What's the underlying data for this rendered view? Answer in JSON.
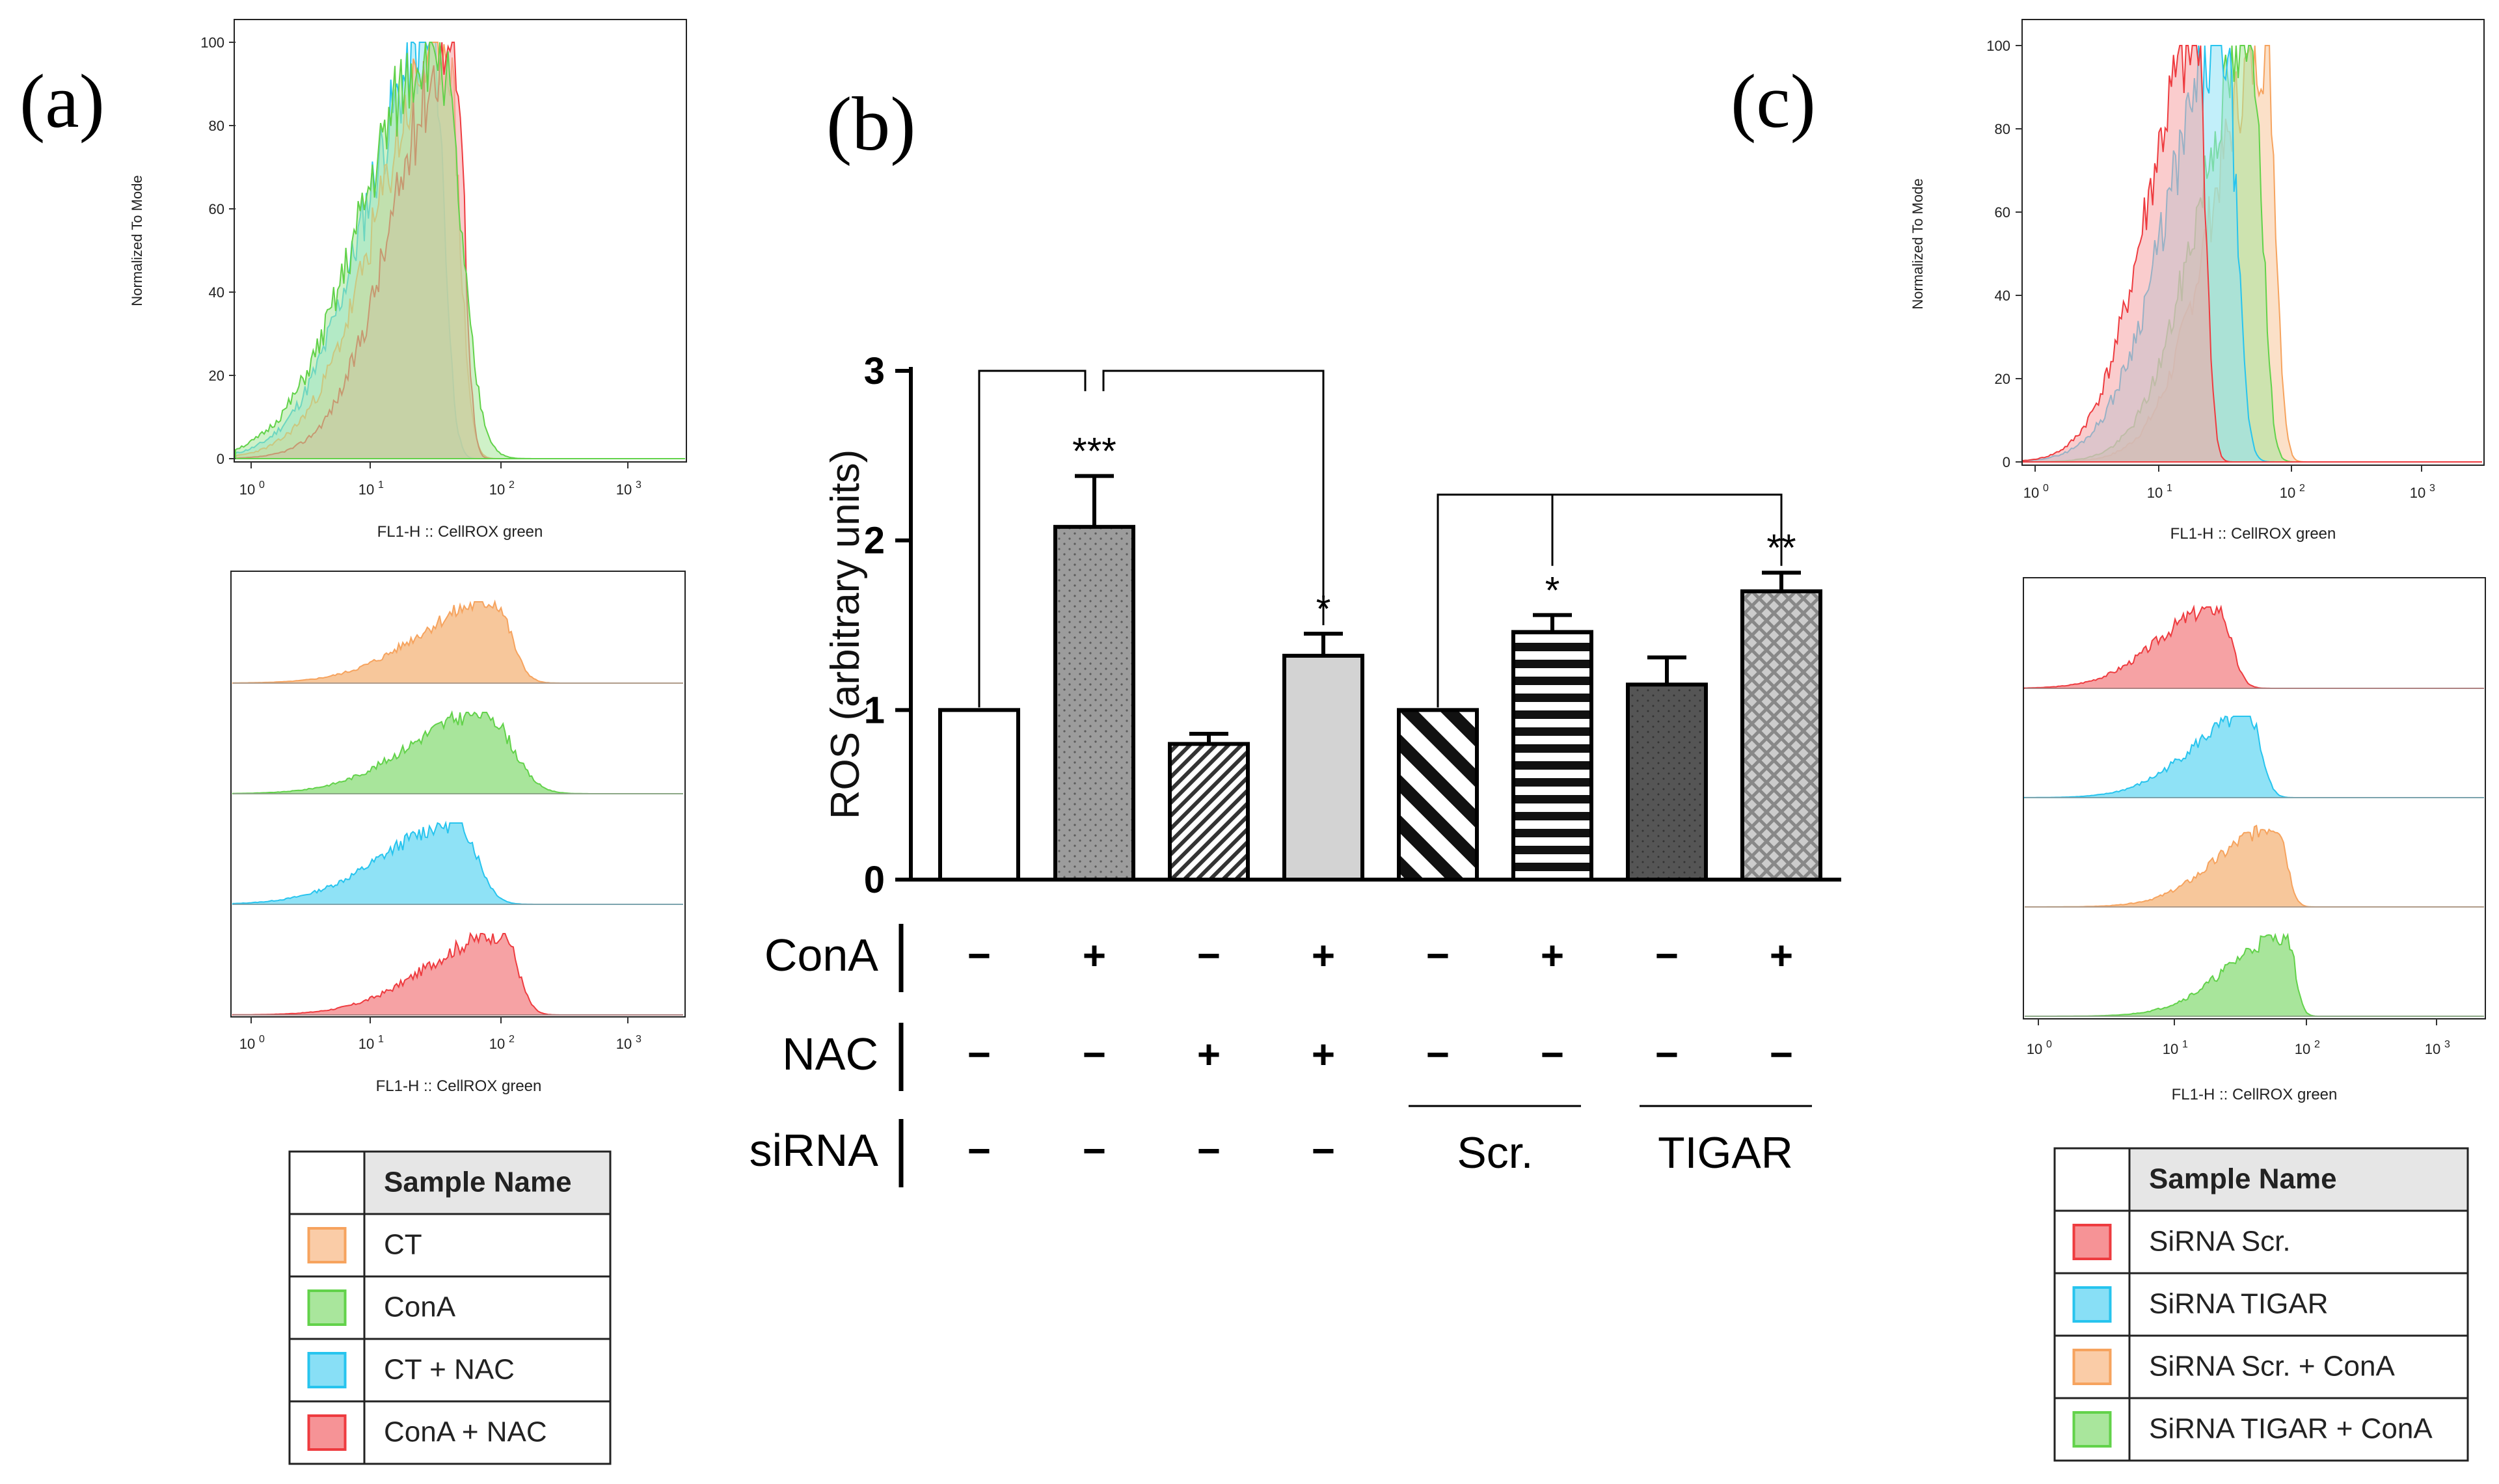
{
  "panel_labels": [
    "(a)",
    "(b)",
    "(c)"
  ],
  "colors": {
    "CT": "#f6a35e",
    "ConA": "#62d24a",
    "CT_NAC": "#27c4ee",
    "ConA_NAC": "#ee3b3f",
    "fill_orange": "#f7c79b",
    "fill_green": "#a8e59b",
    "fill_cyan": "#8fe2f6",
    "fill_red": "#f6a2a4",
    "header_bg": "#e6e6e6"
  },
  "histogram_axes": {
    "ylabel": "Normalized To Mode",
    "xlabel": "FL1-H :: CellROX green",
    "yticks": [
      "0",
      "20",
      "40",
      "60",
      "80",
      "100"
    ],
    "xticks": [
      "10",
      "10",
      "10",
      "10"
    ],
    "xtick_exponents": [
      "0",
      "1",
      "2",
      "3"
    ]
  },
  "legend_a": {
    "header": "Sample Name",
    "items": [
      {
        "label": "CT",
        "color": "#f6a35e"
      },
      {
        "label": "ConA",
        "color": "#62d24a"
      },
      {
        "label": "CT + NAC",
        "color": "#27c4ee"
      },
      {
        "label": "ConA + NAC",
        "color": "#ee3b3f"
      }
    ]
  },
  "legend_c": {
    "header": "Sample Name",
    "items": [
      {
        "label": "SiRNA Scr.",
        "color": "#ee3b3f"
      },
      {
        "label": "SiRNA TIGAR",
        "color": "#27c4ee"
      },
      {
        "label": "SiRNA Scr. + ConA",
        "color": "#f6a35e"
      },
      {
        "label": "SiRNA TIGAR + ConA",
        "color": "#62d24a"
      }
    ]
  },
  "chart_data": {
    "type": "bar",
    "title": "",
    "ylabel": "ROS (arbitrary units)",
    "xlabel": "",
    "ylim": [
      0,
      3
    ],
    "yticks": [
      "0",
      "1",
      "2",
      "3"
    ],
    "values": [
      1.0,
      2.08,
      0.8,
      1.32,
      1.0,
      1.46,
      1.15,
      1.7
    ],
    "errors": [
      0,
      0.3,
      0.06,
      0.13,
      0,
      0.1,
      0.16,
      0.11
    ],
    "significance": [
      "",
      "***",
      "",
      "*",
      "",
      "*",
      "",
      "**"
    ],
    "conditions": {
      "row_labels": [
        "ConA",
        "NAC",
        "siRNA"
      ],
      "ConA": [
        "−",
        "+",
        "−",
        "+",
        "−",
        "+",
        "−",
        "+"
      ],
      "NAC": [
        "−",
        "−",
        "+",
        "+",
        "−",
        "−",
        "−",
        "−"
      ],
      "siRNA": [
        "−",
        "−",
        "−",
        "−"
      ],
      "siRNA_groups": [
        "Scr.",
        "TIGAR"
      ]
    }
  }
}
